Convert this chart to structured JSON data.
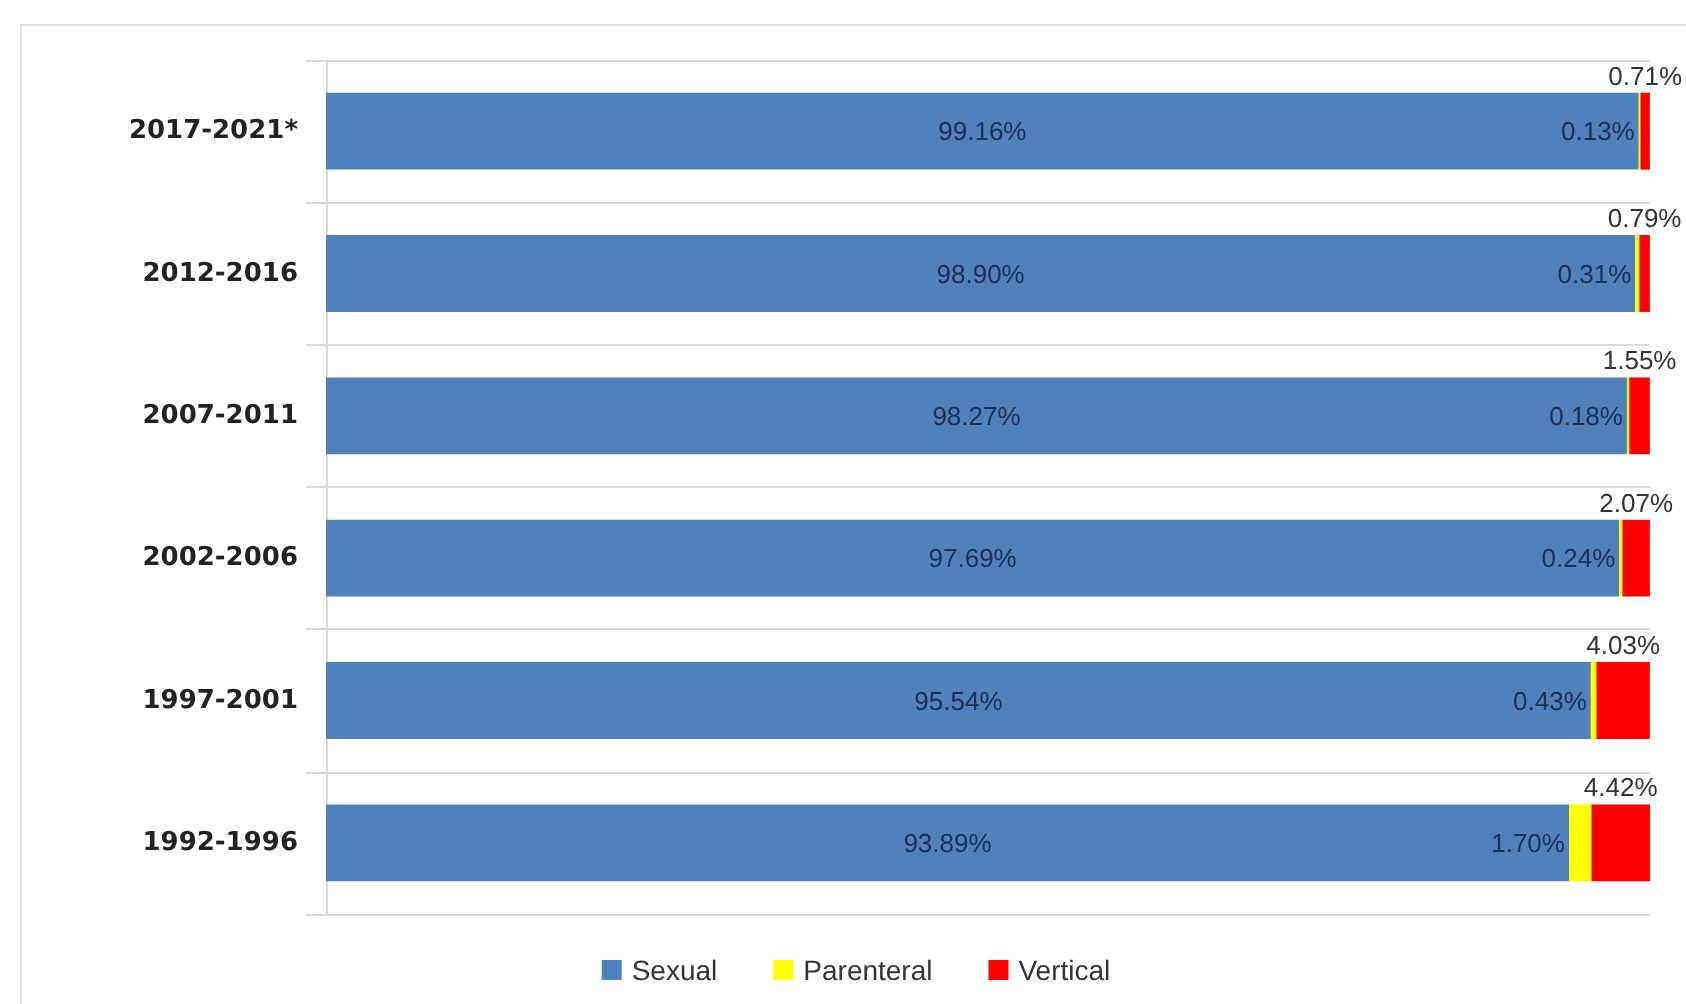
{
  "chart_data": {
    "type": "bar",
    "orientation": "horizontal",
    "stacked": true,
    "categories": [
      "2017-2021*",
      "2012-2016",
      "2007-2011",
      "2002-2006",
      "1997-2001",
      "1992-1996"
    ],
    "series": [
      {
        "name": "Sexual",
        "color": "#4f81bd",
        "values": [
          99.16,
          98.9,
          98.27,
          97.69,
          95.54,
          93.89
        ],
        "value_labels": [
          "99.16%",
          "98.90%",
          "98.27%",
          "97.69%",
          "95.54%",
          "93.89%"
        ]
      },
      {
        "name": "Parenteral",
        "color": "#ffff00",
        "values": [
          0.13,
          0.31,
          0.18,
          0.24,
          0.43,
          1.7
        ],
        "value_labels": [
          "0.13%",
          "0.31%",
          "0.18%",
          "0.24%",
          "0.43%",
          "1.70%"
        ]
      },
      {
        "name": "Vertical",
        "color": "#ff0000",
        "values": [
          0.71,
          0.79,
          1.55,
          2.07,
          4.03,
          4.42
        ],
        "value_labels": [
          "0.71%",
          "0.79%",
          "1.55%",
          "2.07%",
          "4.03%",
          "4.42%"
        ]
      }
    ],
    "grid": "y",
    "legend": "bottom",
    "tick_labels": "y"
  }
}
